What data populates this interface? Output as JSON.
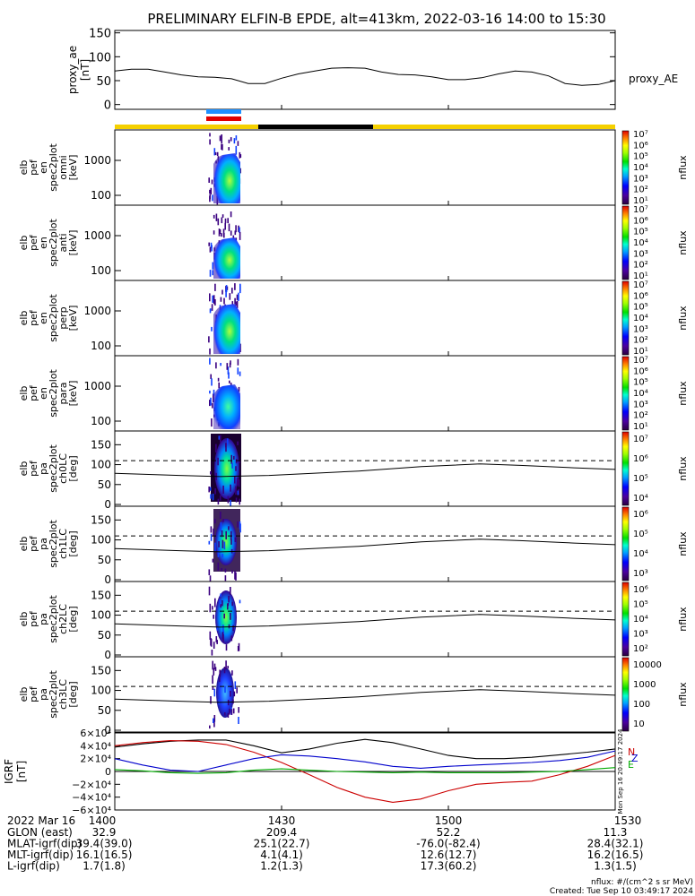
{
  "title": "PRELIMINARY ELFIN-B EPDE, alt=413km, 2022-03-16 14:00 to 15:30",
  "ae_panel": {
    "ylabel_lines": [
      "proxy_ae",
      "[nT]"
    ],
    "yticks": [
      0,
      50,
      100,
      150
    ],
    "ylim": [
      -10,
      155
    ],
    "legend": "proxy_AE"
  },
  "energy_panels": [
    {
      "ylabel_lines": [
        "elb",
        "pef",
        "en",
        "spec2plot",
        "omni",
        "[keV]"
      ]
    },
    {
      "ylabel_lines": [
        "elb",
        "pef",
        "en",
        "spec2plot",
        "anti",
        "[keV]"
      ]
    },
    {
      "ylabel_lines": [
        "elb",
        "pef",
        "en",
        "spec2plot",
        "perp",
        "[keV]"
      ]
    },
    {
      "ylabel_lines": [
        "elb",
        "pef",
        "en",
        "spec2plot",
        "para",
        "[keV]"
      ]
    }
  ],
  "energy_yticks": [
    "100",
    "1000"
  ],
  "energy_colorbar": {
    "label": "nflux",
    "exponents": [
      1,
      2,
      3,
      4,
      5,
      6,
      7
    ]
  },
  "pa_panels": [
    {
      "ylabel_lines": [
        "elb",
        "pef",
        "pa",
        "spec2plot",
        "ch0LC",
        "[deg]"
      ],
      "cbar_labels": [
        "10⁴",
        "10⁵",
        "10⁶",
        "10⁷"
      ]
    },
    {
      "ylabel_lines": [
        "elb",
        "pef",
        "pa",
        "spec2plot",
        "ch1LC",
        "[deg]"
      ],
      "cbar_labels": [
        "10³",
        "10⁴",
        "10⁵",
        "10⁶"
      ]
    },
    {
      "ylabel_lines": [
        "elb",
        "pef",
        "pa",
        "spec2plot",
        "ch2LC",
        "[deg]"
      ],
      "cbar_labels": [
        "10²",
        "10³",
        "10⁴",
        "10⁵",
        "10⁶"
      ]
    },
    {
      "ylabel_lines": [
        "elb",
        "pef",
        "pa",
        "spec2plot",
        "ch3LC",
        "[deg]"
      ],
      "cbar_labels": [
        "10",
        "100",
        "1000",
        "10000"
      ]
    }
  ],
  "pa_yticks": [
    "0",
    "50",
    "100",
    "150"
  ],
  "pa_colorbar_label": "nflux",
  "igrf_panel": {
    "ylabel_lines": [
      "IGRF",
      "[nT]"
    ],
    "ytick_labels": [
      "−6×10⁴",
      "−4×10⁴",
      "−2×10⁴",
      "0",
      "2×10⁴",
      "4×10⁴",
      "6×10⁴"
    ],
    "legend": [
      "N",
      "E",
      "Z"
    ],
    "colors": {
      "N": "#cc0000",
      "E": "#00aa00",
      "Z": "#0000cc",
      "total": "#000000"
    },
    "side_stamp": "Mon Sep 16 20:49:17 2024"
  },
  "x_axis": {
    "date_label": "2022 Mar 16",
    "ticks": [
      "1400",
      "1430",
      "1500",
      "1530"
    ],
    "rows": [
      {
        "label": "GLON (east)",
        "values": [
          "32.9",
          "209.4",
          "52.2",
          "11.3"
        ]
      },
      {
        "label": "MLAT-igrf(dip)",
        "values": [
          "39.4(39.0)",
          "25.1(22.7)",
          "-76.0(-82.4)",
          "28.4(32.1)"
        ]
      },
      {
        "label": "MLT-igrf(dip)",
        "values": [
          "16.1(16.5)",
          "4.1(4.1)",
          "12.6(12.7)",
          "16.2(16.5)"
        ]
      },
      {
        "label": "L-igrf(dip)",
        "values": [
          "1.7(1.8)",
          "1.2(1.3)",
          "17.3(60.2)",
          "1.3(1.5)"
        ]
      }
    ]
  },
  "footer": {
    "units": "nflux: #/(cm^2 s sr MeV)",
    "created": "Created: Tue Sep 10 03:49:17 2024"
  },
  "chart_data": [
    {
      "type": "line",
      "xlabel": "",
      "ylabel": "proxy_ae [nT]",
      "ylim": [
        -10,
        155
      ],
      "x": [
        "14:00",
        "14:03",
        "14:06",
        "14:09",
        "14:12",
        "14:15",
        "14:18",
        "14:21",
        "14:24",
        "14:27",
        "14:30",
        "14:33",
        "14:36",
        "14:39",
        "14:42",
        "14:45",
        "14:48",
        "14:51",
        "14:54",
        "14:57",
        "15:00",
        "15:03",
        "15:06",
        "15:09",
        "15:12",
        "15:15",
        "15:18",
        "15:21",
        "15:24",
        "15:27",
        "15:30"
      ],
      "series": [
        {
          "name": "proxy_AE",
          "values": [
            70,
            74,
            74,
            68,
            62,
            58,
            57,
            54,
            44,
            44,
            55,
            64,
            70,
            76,
            77,
            76,
            68,
            63,
            62,
            58,
            52,
            52,
            56,
            64,
            70,
            68,
            60,
            44,
            40,
            42,
            50
          ]
        }
      ]
    },
    {
      "type": "line",
      "xlabel": "",
      "ylabel": "IGRF [nT]",
      "ylim": [
        -60000,
        60000
      ],
      "x": [
        "14:00",
        "14:05",
        "14:10",
        "14:15",
        "14:20",
        "14:25",
        "14:30",
        "14:35",
        "14:40",
        "14:45",
        "14:50",
        "14:55",
        "15:00",
        "15:05",
        "15:10",
        "15:15",
        "15:20",
        "15:25",
        "15:30"
      ],
      "series": [
        {
          "name": "",
          "values": [
            38000,
            43000,
            47000,
            49000,
            49000,
            40000,
            29000,
            35000,
            44000,
            50000,
            45000,
            35000,
            25000,
            20000,
            20000,
            22000,
            26000,
            30000,
            35000
          ]
        },
        {
          "name": "N",
          "values": [
            40000,
            45000,
            48000,
            47000,
            42000,
            30000,
            14000,
            -5000,
            -25000,
            -40000,
            -48000,
            -43000,
            -30000,
            -20000,
            -17000,
            -15000,
            -5000,
            8000,
            25000
          ]
        },
        {
          "name": "E",
          "values": [
            3000,
            1000,
            -2000,
            -3000,
            -2000,
            2000,
            4000,
            2000,
            0,
            -1000,
            -2000,
            -1000,
            -2000,
            -2000,
            -2000,
            -1000,
            0,
            3000,
            6000
          ]
        },
        {
          "name": "Z",
          "values": [
            20000,
            10000,
            2000,
            0,
            10000,
            20000,
            26000,
            24000,
            20000,
            15000,
            8000,
            5000,
            8000,
            10000,
            12000,
            14000,
            17000,
            22000,
            32000
          ]
        }
      ]
    }
  ]
}
